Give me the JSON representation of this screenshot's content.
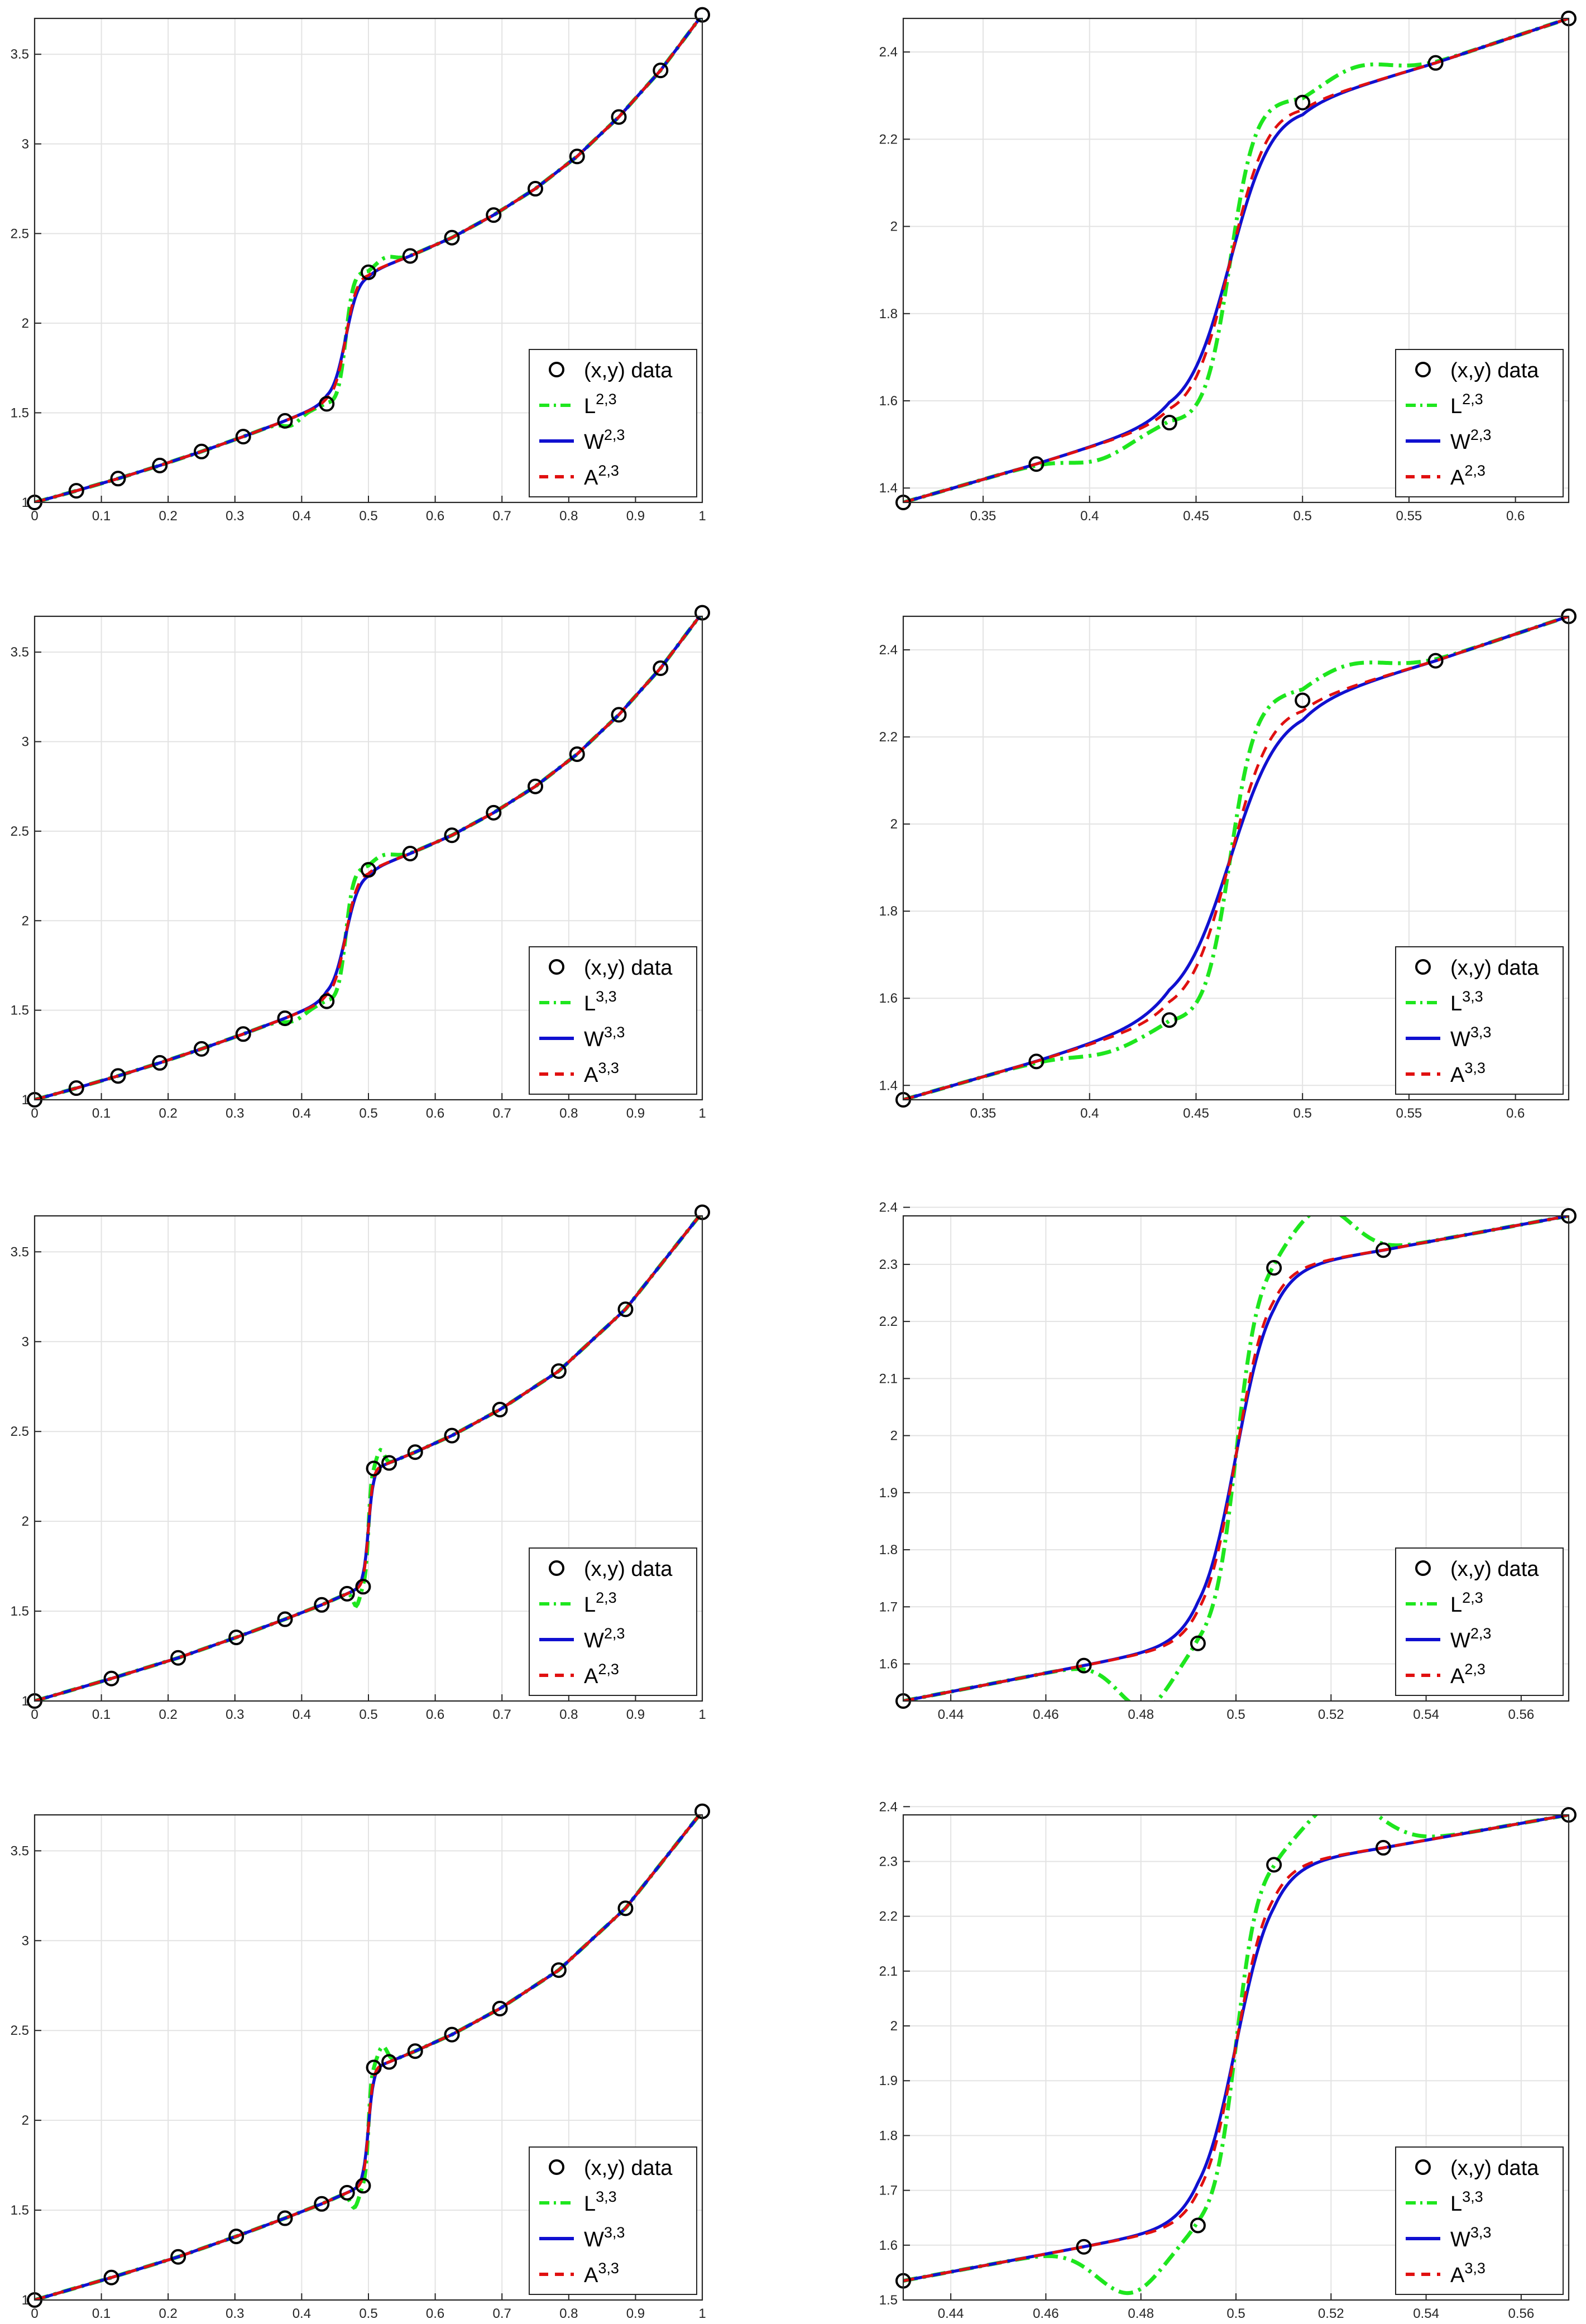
{
  "figure": {
    "description_rows": 4,
    "description_cols": 2
  },
  "styles": {
    "data_marker": {
      "color": "#000000"
    },
    "L": {
      "color": "#1ee61e",
      "dash": "dashdot"
    },
    "W": {
      "color": "#1010d0",
      "dash": "solid"
    },
    "A": {
      "color": "#e01010",
      "dash": "dashed"
    }
  },
  "chart_data": [
    {
      "id": "r1-full",
      "type": "line",
      "xlim": [
        0,
        1
      ],
      "ylim": [
        1,
        3.7
      ],
      "xticks": [
        0,
        0.1,
        0.2,
        0.3,
        0.4,
        0.5,
        0.6,
        0.7,
        0.8,
        0.9,
        1
      ],
      "xtick_labels": [
        "0",
        "0.1",
        "0.2",
        "0.3",
        "0.4",
        "0.5",
        "0.6",
        "0.7",
        "0.8",
        "0.9",
        "1"
      ],
      "yticks": [
        1,
        1.5,
        2,
        2.5,
        3,
        3.5
      ],
      "ytick_labels": [
        "1",
        "1.5",
        "2",
        "2.5",
        "3",
        "3.5"
      ],
      "grid": true,
      "data_points": {
        "x": [
          0,
          0.0625,
          0.125,
          0.1875,
          0.25,
          0.3125,
          0.375,
          0.4375,
          0.5,
          0.5625,
          0.625,
          0.6875,
          0.75,
          0.8125,
          0.875,
          0.9375,
          1
        ],
        "y": [
          1.0,
          1.065,
          1.133,
          1.206,
          1.284,
          1.367,
          1.455,
          1.55,
          2.284,
          2.375,
          2.477,
          2.603,
          2.75,
          2.93,
          3.15,
          3.41,
          3.72
        ]
      },
      "curve": {
        "jump_at": 0.466,
        "width": 0.0153,
        "amp": 0.782
      },
      "L_bumps": [
        {
          "c": 0.385,
          "w": 0.018,
          "a": -0.04
        },
        {
          "c": 0.525,
          "w": 0.02,
          "a": 0.045
        }
      ],
      "W_spread": 1.35,
      "A_spread": 1.18,
      "legend": {
        "position": "bottom-right",
        "entries": [
          {
            "key": "data",
            "label": "(x,y) data",
            "sup": ""
          },
          {
            "key": "L",
            "label": "L",
            "sup": "2,3"
          },
          {
            "key": "W",
            "label": "W",
            "sup": "2,3"
          },
          {
            "key": "A",
            "label": "A",
            "sup": "2,3"
          }
        ]
      }
    },
    {
      "id": "r1-zoom",
      "type": "line",
      "xlim": [
        0.3125,
        0.625
      ],
      "ylim": [
        1.367,
        2.477
      ],
      "xticks": [
        0.35,
        0.4,
        0.45,
        0.5,
        0.55,
        0.6
      ],
      "xtick_labels": [
        "0.35",
        "0.4",
        "0.45",
        "0.5",
        "0.55",
        "0.6"
      ],
      "yticks": [
        1.4,
        1.6,
        1.8,
        2,
        2.2,
        2.4
      ],
      "ytick_labels": [
        "1.4",
        "1.6",
        "1.8",
        "2",
        "2.2",
        "2.4"
      ],
      "grid": true,
      "data_points": {
        "x": [
          0.3125,
          0.375,
          0.4375,
          0.5,
          0.5625,
          0.625
        ],
        "y": [
          1.367,
          1.455,
          1.55,
          2.284,
          2.375,
          2.477
        ]
      },
      "curve": {
        "jump_at": 0.466,
        "width": 0.0153,
        "amp": 0.782
      },
      "L_bumps": [
        {
          "c": 0.405,
          "w": 0.02,
          "a": -0.035
        },
        {
          "c": 0.525,
          "w": 0.022,
          "a": 0.045
        }
      ],
      "W_spread": 1.35,
      "A_spread": 1.18,
      "legend": {
        "position": "bottom-right",
        "entries": [
          {
            "key": "data",
            "label": "(x,y) data",
            "sup": ""
          },
          {
            "key": "L",
            "label": "L",
            "sup": "2,3"
          },
          {
            "key": "W",
            "label": "W",
            "sup": "2,3"
          },
          {
            "key": "A",
            "label": "A",
            "sup": "2,3"
          }
        ]
      }
    },
    {
      "id": "r2-full",
      "type": "line",
      "xlim": [
        0,
        1
      ],
      "ylim": [
        1,
        3.7
      ],
      "xticks": [
        0,
        0.1,
        0.2,
        0.3,
        0.4,
        0.5,
        0.6,
        0.7,
        0.8,
        0.9,
        1
      ],
      "xtick_labels": [
        "0",
        "0.1",
        "0.2",
        "0.3",
        "0.4",
        "0.5",
        "0.6",
        "0.7",
        "0.8",
        "0.9",
        "1"
      ],
      "yticks": [
        1,
        1.5,
        2,
        2.5,
        3,
        3.5
      ],
      "ytick_labels": [
        "1",
        "1.5",
        "2",
        "2.5",
        "3",
        "3.5"
      ],
      "grid": true,
      "data_points": {
        "x": [
          0,
          0.0625,
          0.125,
          0.1875,
          0.25,
          0.3125,
          0.375,
          0.4375,
          0.5,
          0.5625,
          0.625,
          0.6875,
          0.75,
          0.8125,
          0.875,
          0.9375,
          1
        ],
        "y": [
          1.0,
          1.065,
          1.133,
          1.206,
          1.284,
          1.367,
          1.455,
          1.55,
          2.284,
          2.375,
          2.477,
          2.603,
          2.75,
          2.93,
          3.15,
          3.41,
          3.72
        ]
      },
      "curve": {
        "jump_at": 0.466,
        "width": 0.0153,
        "amp": 0.782
      },
      "L_bumps": [
        {
          "c": 0.39,
          "w": 0.022,
          "a": -0.035
        },
        {
          "c": 0.52,
          "w": 0.025,
          "a": 0.05
        }
      ],
      "W_spread": 1.45,
      "A_spread": 1.25,
      "legend": {
        "position": "bottom-right",
        "entries": [
          {
            "key": "data",
            "label": "(x,y) data",
            "sup": ""
          },
          {
            "key": "L",
            "label": "L",
            "sup": "3,3"
          },
          {
            "key": "W",
            "label": "W",
            "sup": "3,3"
          },
          {
            "key": "A",
            "label": "A",
            "sup": "3,3"
          }
        ]
      }
    },
    {
      "id": "r2-zoom",
      "type": "line",
      "xlim": [
        0.3125,
        0.625
      ],
      "ylim": [
        1.367,
        2.477
      ],
      "xticks": [
        0.35,
        0.4,
        0.45,
        0.5,
        0.55,
        0.6
      ],
      "xtick_labels": [
        "0.35",
        "0.4",
        "0.45",
        "0.5",
        "0.55",
        "0.6"
      ],
      "yticks": [
        1.4,
        1.6,
        1.8,
        2,
        2.2,
        2.4
      ],
      "ytick_labels": [
        "1.4",
        "1.6",
        "1.8",
        "2",
        "2.2",
        "2.4"
      ],
      "grid": true,
      "data_points": {
        "x": [
          0.3125,
          0.375,
          0.4375,
          0.5,
          0.5625,
          0.625
        ],
        "y": [
          1.367,
          1.455,
          1.55,
          2.284,
          2.375,
          2.477
        ]
      },
      "curve": {
        "jump_at": 0.466,
        "width": 0.0153,
        "amp": 0.782
      },
      "L_bumps": [
        {
          "c": 0.41,
          "w": 0.024,
          "a": -0.03
        },
        {
          "c": 0.52,
          "w": 0.026,
          "a": 0.05
        }
      ],
      "W_spread": 1.6,
      "A_spread": 1.3,
      "legend": {
        "position": "bottom-right",
        "entries": [
          {
            "key": "data",
            "label": "(x,y) data",
            "sup": ""
          },
          {
            "key": "L",
            "label": "L",
            "sup": "3,3"
          },
          {
            "key": "W",
            "label": "W",
            "sup": "3,3"
          },
          {
            "key": "A",
            "label": "A",
            "sup": "3,3"
          }
        ]
      }
    },
    {
      "id": "r3-full",
      "type": "line",
      "xlim": [
        0,
        1
      ],
      "ylim": [
        1,
        3.7
      ],
      "xticks": [
        0,
        0.1,
        0.2,
        0.3,
        0.4,
        0.5,
        0.6,
        0.7,
        0.8,
        0.9,
        1
      ],
      "xtick_labels": [
        "0",
        "0.1",
        "0.2",
        "0.3",
        "0.4",
        "0.5",
        "0.6",
        "0.7",
        "0.8",
        "0.9",
        "1"
      ],
      "yticks": [
        1,
        1.5,
        2,
        2.5,
        3,
        3.5
      ],
      "ytick_labels": [
        "1",
        "1.5",
        "2",
        "2.5",
        "3",
        "3.5"
      ],
      "grid": true,
      "data_points": {
        "x": [
          0,
          0.115,
          0.215,
          0.302,
          0.375,
          0.43,
          0.468,
          0.492,
          0.508,
          0.531,
          0.57,
          0.625,
          0.697,
          0.785,
          0.885,
          1
        ],
        "y": [
          1.0,
          1.125,
          1.24,
          1.354,
          1.455,
          1.535,
          1.597,
          1.636,
          2.294,
          2.325,
          2.385,
          2.477,
          2.622,
          2.836,
          3.18,
          3.72
        ]
      },
      "curve": {
        "jump_at": 0.5,
        "width": 0.006,
        "amp": 0.685
      },
      "L_bumps": [
        {
          "c": 0.482,
          "w": 0.007,
          "a": -0.09
        },
        {
          "c": 0.518,
          "w": 0.008,
          "a": 0.09
        }
      ],
      "W_spread": 1.25,
      "A_spread": 1.12,
      "legend": {
        "position": "bottom-right",
        "entries": [
          {
            "key": "data",
            "label": "(x,y) data",
            "sup": ""
          },
          {
            "key": "L",
            "label": "L",
            "sup": "2,3"
          },
          {
            "key": "W",
            "label": "W",
            "sup": "2,3"
          },
          {
            "key": "A",
            "label": "A",
            "sup": "2,3"
          }
        ]
      }
    },
    {
      "id": "r3-zoom",
      "type": "line",
      "xlim": [
        0.43,
        0.57
      ],
      "ylim": [
        1.535,
        2.385
      ],
      "xticks": [
        0.44,
        0.46,
        0.48,
        0.5,
        0.52,
        0.54,
        0.56
      ],
      "xtick_labels": [
        "0.44",
        "0.46",
        "0.48",
        "0.5",
        "0.52",
        "0.54",
        "0.56"
      ],
      "yticks": [
        1.6,
        1.7,
        1.8,
        1.9,
        2,
        2.1,
        2.2,
        2.3,
        2.4
      ],
      "ytick_labels": [
        "1.6",
        "1.7",
        "1.8",
        "1.9",
        "2",
        "2.1",
        "2.2",
        "2.3",
        "2.4"
      ],
      "grid": true,
      "data_points": {
        "x": [
          0.43,
          0.468,
          0.492,
          0.508,
          0.531,
          0.57
        ],
        "y": [
          1.535,
          1.597,
          1.636,
          2.294,
          2.325,
          2.385
        ]
      },
      "curve": {
        "jump_at": 0.5,
        "width": 0.006,
        "amp": 0.685
      },
      "L_bumps": [
        {
          "c": 0.481,
          "w": 0.008,
          "a": -0.095
        },
        {
          "c": 0.518,
          "w": 0.009,
          "a": 0.09
        }
      ],
      "W_spread": 1.25,
      "A_spread": 1.12,
      "legend": {
        "position": "bottom-right",
        "entries": [
          {
            "key": "data",
            "label": "(x,y) data",
            "sup": ""
          },
          {
            "key": "L",
            "label": "L",
            "sup": "2,3"
          },
          {
            "key": "W",
            "label": "W",
            "sup": "2,3"
          },
          {
            "key": "A",
            "label": "A",
            "sup": "2,3"
          }
        ]
      }
    },
    {
      "id": "r4-full",
      "type": "line",
      "xlim": [
        0,
        1
      ],
      "ylim": [
        1,
        3.7
      ],
      "xticks": [
        0,
        0.1,
        0.2,
        0.3,
        0.4,
        0.5,
        0.6,
        0.7,
        0.8,
        0.9,
        1
      ],
      "xtick_labels": [
        "0",
        "0.1",
        "0.2",
        "0.3",
        "0.4",
        "0.5",
        "0.6",
        "0.7",
        "0.8",
        "0.9",
        "1"
      ],
      "yticks": [
        1,
        1.5,
        2,
        2.5,
        3,
        3.5
      ],
      "ytick_labels": [
        "1",
        "1.5",
        "2",
        "2.5",
        "3",
        "3.5"
      ],
      "grid": true,
      "data_points": {
        "x": [
          0,
          0.115,
          0.215,
          0.302,
          0.375,
          0.43,
          0.468,
          0.492,
          0.508,
          0.531,
          0.57,
          0.625,
          0.697,
          0.785,
          0.885,
          1
        ],
        "y": [
          1.0,
          1.125,
          1.24,
          1.354,
          1.455,
          1.535,
          1.597,
          1.636,
          2.294,
          2.325,
          2.385,
          2.477,
          2.622,
          2.836,
          3.18,
          3.72
        ]
      },
      "curve": {
        "jump_at": 0.5,
        "width": 0.006,
        "amp": 0.685
      },
      "L_bumps": [
        {
          "c": 0.479,
          "w": 0.009,
          "a": -0.1
        },
        {
          "c": 0.521,
          "w": 0.01,
          "a": 0.1
        }
      ],
      "W_spread": 1.3,
      "A_spread": 1.15,
      "legend": {
        "position": "bottom-right",
        "entries": [
          {
            "key": "data",
            "label": "(x,y) data",
            "sup": ""
          },
          {
            "key": "L",
            "label": "L",
            "sup": "3,3"
          },
          {
            "key": "W",
            "label": "W",
            "sup": "3,3"
          },
          {
            "key": "A",
            "label": "A",
            "sup": "3,3"
          }
        ]
      }
    },
    {
      "id": "r4-zoom",
      "type": "line",
      "xlim": [
        0.43,
        0.57
      ],
      "ylim": [
        1.5,
        2.385
      ],
      "xticks": [
        0.44,
        0.46,
        0.48,
        0.5,
        0.52,
        0.54,
        0.56
      ],
      "xtick_labels": [
        "0.44",
        "0.46",
        "0.48",
        "0.5",
        "0.52",
        "0.54",
        "0.56"
      ],
      "yticks": [
        1.5,
        1.6,
        1.7,
        1.8,
        1.9,
        2,
        2.1,
        2.2,
        2.3,
        2.4
      ],
      "ytick_labels": [
        "1.5",
        "1.6",
        "1.7",
        "1.8",
        "1.9",
        "2",
        "2.1",
        "2.2",
        "2.3",
        "2.4"
      ],
      "grid": true,
      "data_points": {
        "x": [
          0.43,
          0.468,
          0.492,
          0.508,
          0.531,
          0.57
        ],
        "y": [
          1.535,
          1.597,
          1.636,
          2.294,
          2.325,
          2.385
        ]
      },
      "curve": {
        "jump_at": 0.5,
        "width": 0.006,
        "amp": 0.685
      },
      "L_bumps": [
        {
          "c": 0.478,
          "w": 0.01,
          "a": -0.1
        },
        {
          "c": 0.522,
          "w": 0.011,
          "a": 0.1
        }
      ],
      "W_spread": 1.3,
      "A_spread": 1.15,
      "legend": {
        "position": "bottom-right",
        "entries": [
          {
            "key": "data",
            "label": "(x,y) data",
            "sup": ""
          },
          {
            "key": "L",
            "label": "L",
            "sup": "3,3"
          },
          {
            "key": "W",
            "label": "W",
            "sup": "3,3"
          },
          {
            "key": "A",
            "label": "A",
            "sup": "3,3"
          }
        ]
      }
    }
  ]
}
